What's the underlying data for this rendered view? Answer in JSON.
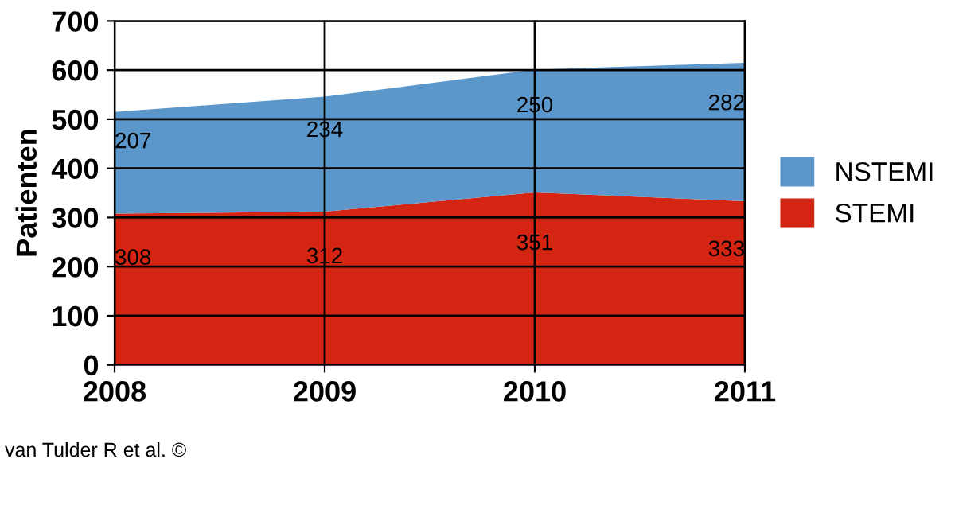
{
  "chart_data": {
    "type": "area",
    "stacked": true,
    "ylabel": "Patienten",
    "x": [
      2008,
      2009,
      2010,
      2011
    ],
    "series": [
      {
        "name": "STEMI",
        "color": "#d42412",
        "values": [
          308,
          312,
          351,
          333
        ]
      },
      {
        "name": "NSTEMI",
        "color": "#5b97cb",
        "values": [
          207,
          234,
          250,
          282
        ]
      }
    ],
    "xlim": [
      2008,
      2011
    ],
    "xticks": [
      2008,
      2009,
      2010,
      2011
    ],
    "ylim": [
      0,
      700
    ],
    "yticks": [
      0,
      100,
      200,
      300,
      400,
      500,
      600,
      700
    ],
    "grid": true,
    "legend": "right",
    "data_labels": true,
    "annotations": [
      "van Tulder R et al. ©"
    ]
  }
}
